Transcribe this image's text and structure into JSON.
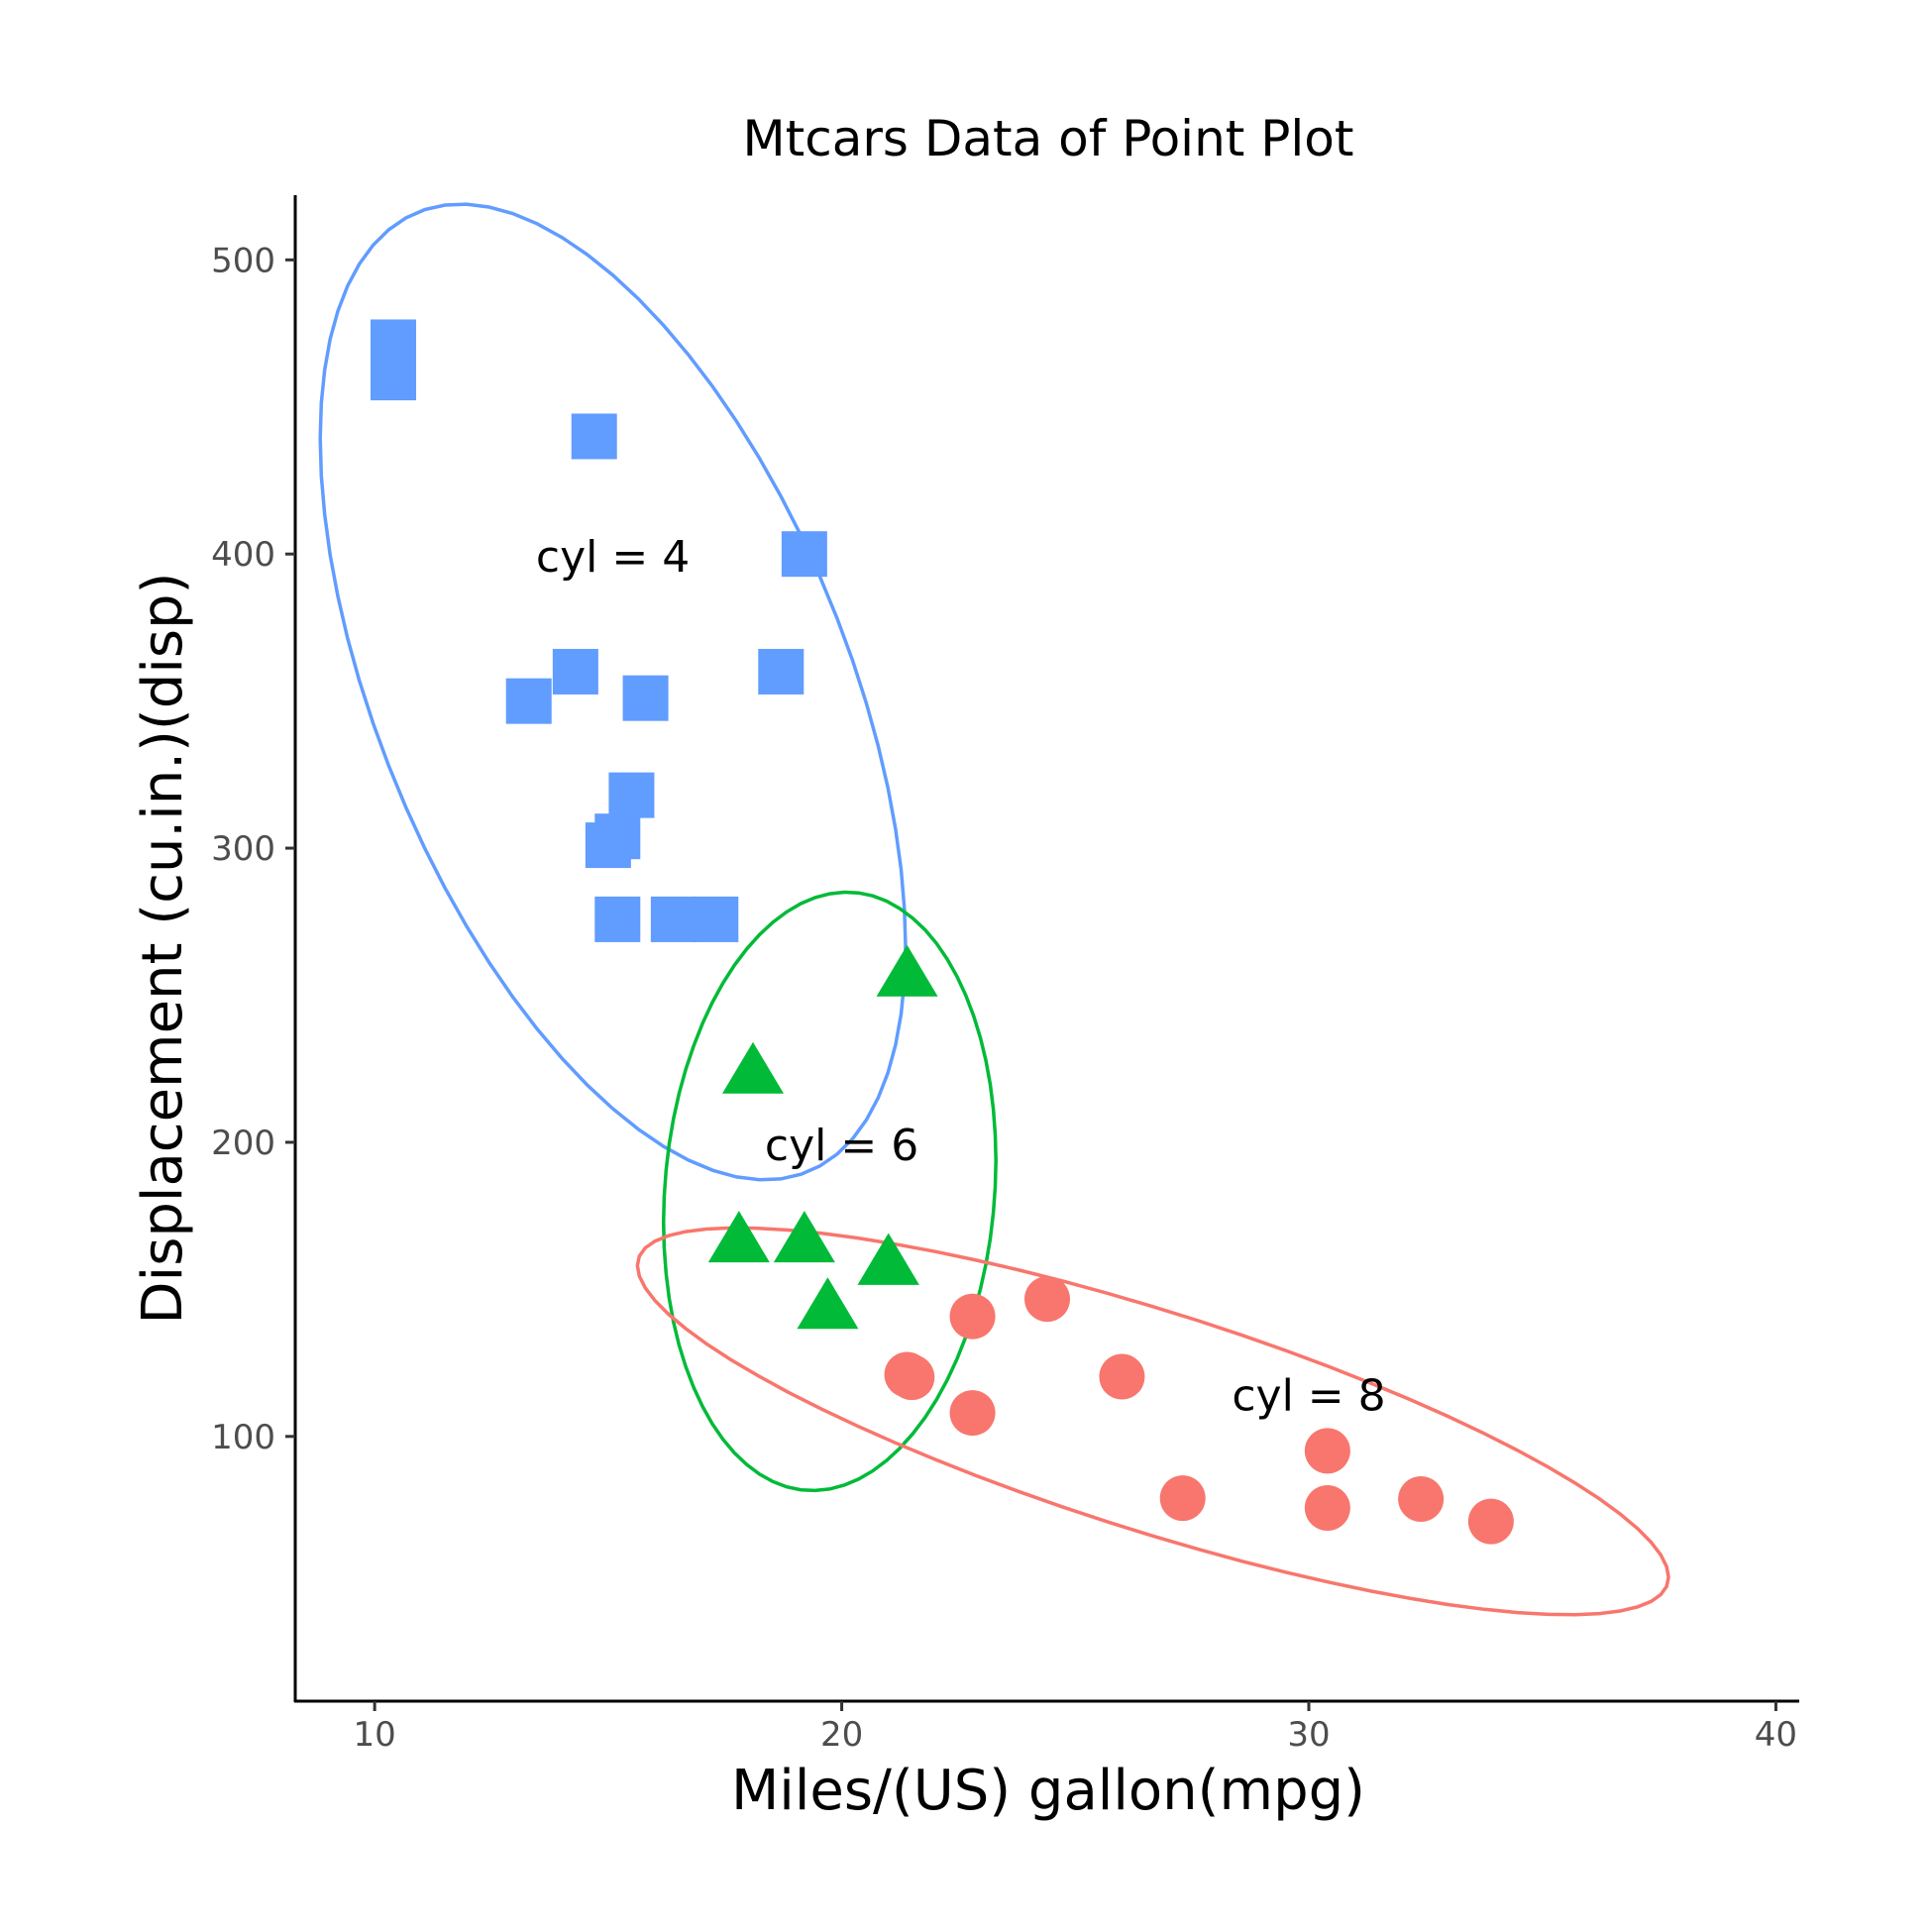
{
  "chart_data": {
    "type": "scatter",
    "title": "Mtcars Data of Point Plot",
    "xlabel": "Miles/(US) gallon(mpg)",
    "ylabel": "Displacement (cu.in.)(disp)",
    "xlim": [
      8.3,
      40.5
    ],
    "ylim": [
      10,
      522
    ],
    "xticks": [
      10,
      20,
      30,
      40
    ],
    "yticks": [
      100,
      200,
      300,
      400,
      500
    ],
    "grid": false,
    "legend": "none",
    "series": [
      {
        "color": "#619CFF",
        "shape": "square",
        "points": [
          {
            "x": 10.4,
            "y": 472
          },
          {
            "x": 10.4,
            "y": 460
          },
          {
            "x": 14.7,
            "y": 440
          },
          {
            "x": 19.2,
            "y": 400
          },
          {
            "x": 18.7,
            "y": 360
          },
          {
            "x": 14.3,
            "y": 360
          },
          {
            "x": 15.8,
            "y": 351
          },
          {
            "x": 13.3,
            "y": 350
          },
          {
            "x": 15.5,
            "y": 318
          },
          {
            "x": 15.2,
            "y": 304
          },
          {
            "x": 15.0,
            "y": 301
          },
          {
            "x": 16.4,
            "y": 275.8
          },
          {
            "x": 17.3,
            "y": 275.8
          },
          {
            "x": 15.2,
            "y": 275.8
          }
        ]
      },
      {
        "color": "#00BA38",
        "shape": "triangle",
        "points": [
          {
            "x": 21.4,
            "y": 258
          },
          {
            "x": 18.1,
            "y": 225
          },
          {
            "x": 21.0,
            "y": 160
          },
          {
            "x": 21.0,
            "y": 160
          },
          {
            "x": 19.2,
            "y": 167.6
          },
          {
            "x": 17.8,
            "y": 167.6
          },
          {
            "x": 19.7,
            "y": 145
          }
        ]
      },
      {
        "color": "#F8766D",
        "shape": "circle",
        "points": [
          {
            "x": 24.4,
            "y": 146.7
          },
          {
            "x": 22.8,
            "y": 140.8
          },
          {
            "x": 21.5,
            "y": 120.1
          },
          {
            "x": 21.4,
            "y": 121
          },
          {
            "x": 26.0,
            "y": 120.3
          },
          {
            "x": 22.8,
            "y": 108
          },
          {
            "x": 30.4,
            "y": 95.1
          },
          {
            "x": 27.3,
            "y": 79
          },
          {
            "x": 32.4,
            "y": 78.7
          },
          {
            "x": 30.4,
            "y": 75.7
          },
          {
            "x": 33.9,
            "y": 71.1
          }
        ]
      }
    ],
    "annotations": [
      {
        "text": "cyl = 4",
        "x": 15.1,
        "y": 399
      },
      {
        "text": "cyl = 6",
        "x": 20.0,
        "y": 199
      },
      {
        "text": "cyl = 8",
        "x": 30.0,
        "y": 114
      }
    ]
  }
}
